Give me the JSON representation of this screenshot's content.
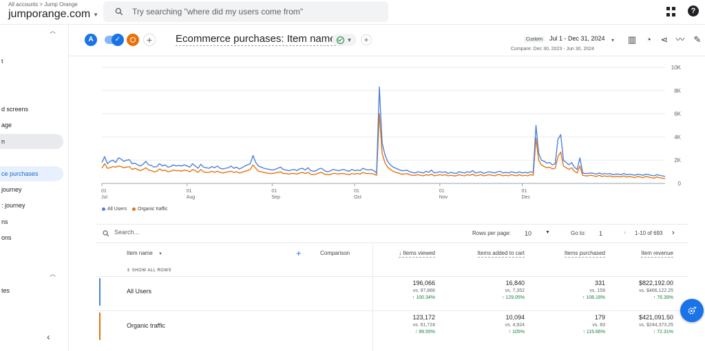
{
  "header": {
    "breadcrumb": "All accounts > Jump Orange",
    "property": "jumporange.com",
    "search_placeholder": "Try searching \"where did my users come from\"",
    "icons": [
      "search-icon",
      "apps-icon",
      "help-icon"
    ]
  },
  "sidebar": {
    "items": [
      {
        "label": "t",
        "state": ""
      },
      {
        "label": "",
        "state": ""
      },
      {
        "label": "",
        "state": ""
      },
      {
        "label": "d screens",
        "state": ""
      },
      {
        "label": "age",
        "state": ""
      },
      {
        "label": "n",
        "state": "gray"
      },
      {
        "label": "",
        "state": ""
      },
      {
        "label": "ce purchases",
        "state": "blue"
      },
      {
        "label": "journey",
        "state": ""
      },
      {
        "label": ": journey",
        "state": ""
      },
      {
        "label": "ns",
        "state": ""
      },
      {
        "label": "ons",
        "state": ""
      },
      {
        "label": "tes",
        "state": ""
      }
    ]
  },
  "comparison": {
    "segment_a": "A",
    "title": "Ecommerce purchases: Item name",
    "add": "+",
    "date_label": "Custom",
    "date_range": "Jul 1 - Dec 31, 2024",
    "compare": "Compare: Dec 30, 2023 - Jun 30, 2024"
  },
  "chart_data": {
    "type": "line",
    "y_ticks": [
      "10K",
      "8K",
      "6K",
      "4K",
      "2K",
      "0"
    ],
    "ylim": [
      0,
      10000
    ],
    "x_ticks": [
      {
        "day": 0,
        "l1": "01",
        "l2": "Jul"
      },
      {
        "day": 31,
        "l1": "01",
        "l2": "Aug"
      },
      {
        "day": 62,
        "l1": "01",
        "l2": "Sep"
      },
      {
        "day": 92,
        "l1": "01",
        "l2": "Oct"
      },
      {
        "day": 123,
        "l1": "01",
        "l2": "Nov"
      },
      {
        "day": 153,
        "l1": "01",
        "l2": "Dec"
      }
    ],
    "series": [
      {
        "name": "All Users",
        "color": "#4a7fdc",
        "values": [
          1800,
          2300,
          1700,
          1900,
          2000,
          1800,
          2200,
          2100,
          1900,
          2000,
          2050,
          1700,
          1750,
          1600,
          1500,
          1650,
          1900,
          1600,
          1550,
          1400,
          1450,
          1700,
          1500,
          1600,
          1400,
          1450,
          1600,
          1500,
          1550,
          1500,
          1600,
          1500,
          1400,
          1700,
          1500,
          1300,
          1650,
          1400,
          1350,
          1300,
          1450,
          1350,
          1500,
          1300,
          1250,
          1300,
          1350,
          1500,
          1300,
          1400,
          1250,
          1350,
          1500,
          1600,
          1700,
          2400,
          1800,
          1500,
          1400,
          1300,
          1250,
          1200,
          1150,
          1200,
          1300,
          1400,
          1200,
          1150,
          1100,
          1150,
          1200,
          1100,
          1250,
          1300,
          1150,
          1350,
          1100,
          1050,
          1100,
          1250,
          1300,
          1100,
          1000,
          1050,
          1200,
          1150,
          1100,
          1150,
          1200,
          1100,
          1050,
          1200,
          1100,
          1150,
          1100,
          1300,
          1200,
          1150,
          1200,
          1100,
          900,
          8300,
          3500,
          2500,
          1900,
          1600,
          1400,
          1300,
          1200,
          1100,
          1100,
          1150,
          1000,
          950,
          900,
          1000,
          950,
          900,
          1050,
          950,
          1150,
          900,
          950,
          1000,
          950,
          1000,
          850,
          950,
          900,
          850,
          1000,
          950,
          900,
          1000,
          950,
          1100,
          900,
          950,
          1000,
          850,
          950,
          1000,
          950,
          900,
          1000,
          1050,
          900,
          950,
          900,
          1000,
          950,
          900,
          1000,
          900,
          950,
          900,
          1000,
          950,
          5000,
          2600,
          2000,
          1900,
          1750,
          1800,
          1600,
          1700,
          3800,
          4200,
          2000,
          1800,
          1600,
          1800,
          1400,
          1200,
          2200,
          900,
          850,
          850,
          900,
          850,
          800,
          900,
          800,
          850,
          800,
          850,
          750,
          800,
          800,
          750,
          850,
          750,
          800,
          750,
          700,
          800,
          750,
          700,
          800,
          750,
          700,
          650,
          750,
          700,
          650,
          600
        ]
      },
      {
        "name": "Organic traffic",
        "color": "#e8710a",
        "values": [
          1300,
          1700,
          1300,
          1350,
          1450,
          1400,
          1500,
          1450,
          1350,
          1400,
          1450,
          1200,
          1300,
          1200,
          1100,
          1200,
          1350,
          1150,
          1100,
          1000,
          1050,
          1250,
          1100,
          1150,
          1000,
          1050,
          1150,
          1100,
          1100,
          1050,
          1150,
          1100,
          1000,
          1200,
          1100,
          950,
          1200,
          1000,
          950,
          950,
          1050,
          950,
          1050,
          950,
          900,
          950,
          1000,
          1050,
          950,
          1000,
          900,
          950,
          1050,
          1100,
          1200,
          1600,
          1300,
          1050,
          1000,
          950,
          900,
          850,
          850,
          900,
          950,
          1000,
          850,
          850,
          800,
          850,
          850,
          800,
          900,
          950,
          850,
          950,
          800,
          750,
          800,
          900,
          950,
          800,
          750,
          750,
          850,
          850,
          800,
          850,
          850,
          800,
          750,
          850,
          800,
          850,
          800,
          950,
          850,
          850,
          850,
          800,
          700,
          6000,
          2600,
          1800,
          1400,
          1200,
          1050,
          950,
          900,
          800,
          800,
          850,
          750,
          700,
          700,
          750,
          700,
          650,
          750,
          700,
          800,
          650,
          700,
          750,
          700,
          750,
          650,
          700,
          650,
          650,
          750,
          700,
          650,
          750,
          700,
          800,
          650,
          700,
          750,
          650,
          700,
          750,
          700,
          650,
          750,
          750,
          650,
          700,
          650,
          750,
          700,
          650,
          750,
          650,
          700,
          650,
          750,
          700,
          3900,
          2000,
          1600,
          1450,
          1350,
          1400,
          1250,
          1300,
          2300,
          2700,
          1500,
          1350,
          1200,
          1350,
          1050,
          900,
          1500,
          700,
          650,
          650,
          700,
          650,
          600,
          700,
          600,
          650,
          600,
          650,
          550,
          600,
          600,
          550,
          650,
          550,
          600,
          550,
          500,
          600,
          550,
          500,
          600,
          550,
          500,
          450,
          550,
          500,
          450,
          400
        ]
      }
    ]
  },
  "table_controls": {
    "search_placeholder": "Search...",
    "rows_per_page_label": "Rows per page:",
    "rows_per_page": "10",
    "goto_label": "Go to:",
    "goto_value": "1",
    "range": "1-10 of 693"
  },
  "table": {
    "dimension_header": "Item name",
    "comparison_header": "Comparison",
    "show_all_rows": "SHOW ALL ROWS",
    "columns": [
      "Items viewed",
      "Items added to cart",
      "Items purchased",
      "Item revenue"
    ],
    "rows": [
      {
        "name": "All Users",
        "color": "#4a7fdc",
        "cells": [
          {
            "v": "196,066",
            "vs": "vs. 97,866",
            "pct": "↑ 100.34%"
          },
          {
            "v": "16,840",
            "vs": "vs. 7,352",
            "pct": "↑ 129.05%"
          },
          {
            "v": "331",
            "vs": "vs. 159",
            "pct": "↑ 108.18%"
          },
          {
            "v": "$822,192.00",
            "vs": "vs. $466,122.25",
            "pct": "↑ 76.39%"
          }
        ]
      },
      {
        "name": "Organic traffic",
        "color": "#e8710a",
        "cells": [
          {
            "v": "123,172",
            "vs": "vs. 61,724",
            "pct": "↑ 99.55%"
          },
          {
            "v": "10,094",
            "vs": "vs. 4,924",
            "pct": "↑ 105%"
          },
          {
            "v": "179",
            "vs": "vs. 83",
            "pct": "↑ 115.66%"
          },
          {
            "v": "$421,091.50",
            "vs": "vs. $244,373.25",
            "pct": "↑ 72.31%"
          }
        ]
      }
    ]
  }
}
